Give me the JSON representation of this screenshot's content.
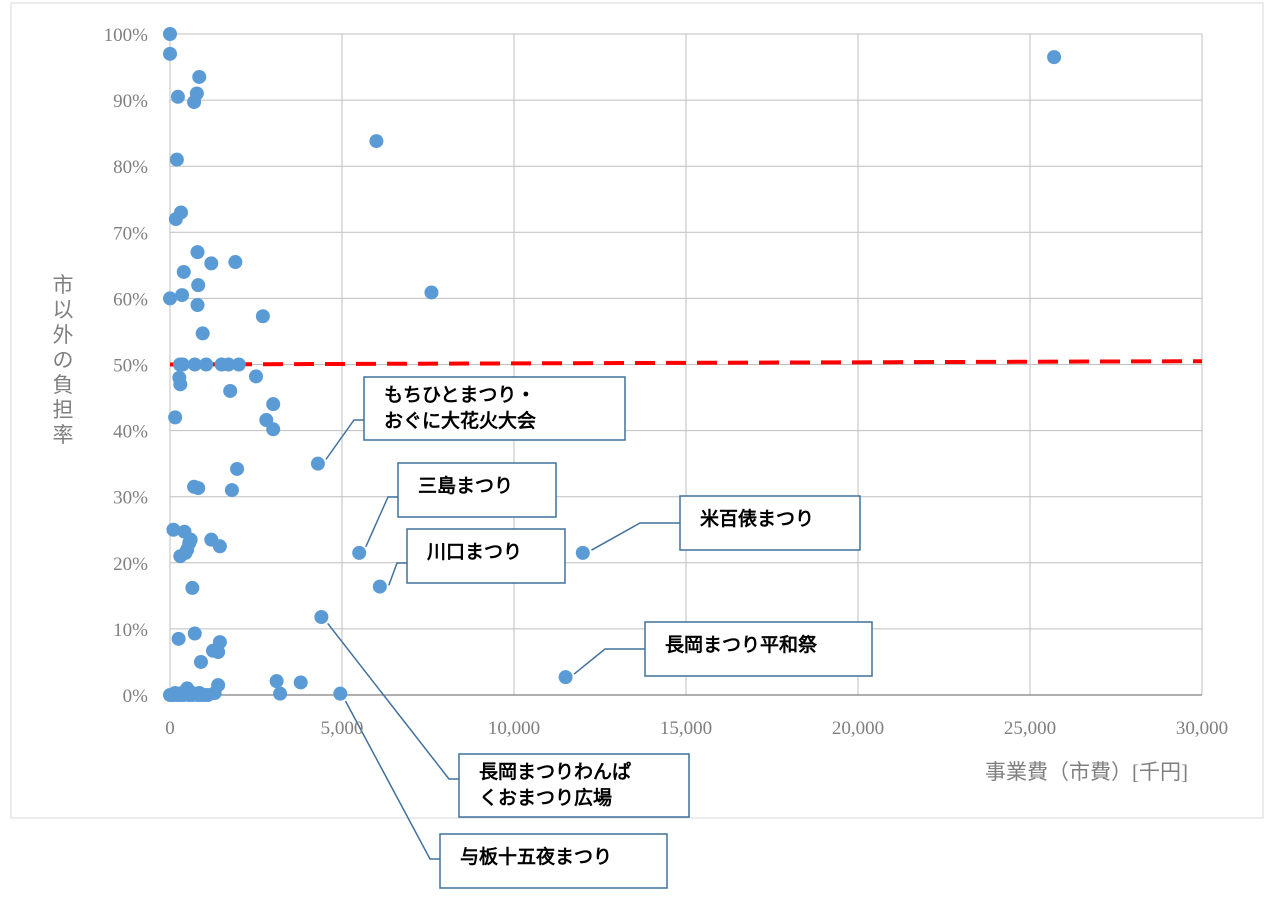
{
  "chart_data": {
    "type": "scatter",
    "title": "",
    "xlabel": "事業費（市費）[千円]",
    "ylabel": "市以外の負担率",
    "xlim": [
      0,
      30000
    ],
    "ylim": [
      0,
      1
    ],
    "x_ticks": [
      0,
      5000,
      10000,
      15000,
      20000,
      25000,
      30000
    ],
    "x_tick_labels": [
      "0",
      "5,000",
      "10,000",
      "15,000",
      "20,000",
      "25,000",
      "30,000"
    ],
    "y_ticks": [
      0,
      0.1,
      0.2,
      0.3,
      0.4,
      0.5,
      0.6,
      0.7,
      0.8,
      0.9,
      1.0
    ],
    "y_tick_labels": [
      "0%",
      "10%",
      "20%",
      "30%",
      "40%",
      "50%",
      "60%",
      "70%",
      "80%",
      "90%",
      "100%"
    ],
    "grid": true,
    "marker_color": "#5b9bd5",
    "reference_line": {
      "y_start": 0.5,
      "y_end": 0.505,
      "color": "#ff0000",
      "style": "dashed"
    },
    "points": [
      [
        0,
        1.0
      ],
      [
        0,
        0.97
      ],
      [
        0,
        0.6
      ],
      [
        0,
        0.0
      ],
      [
        100,
        0.25
      ],
      [
        150,
        0.42
      ],
      [
        170,
        0.72
      ],
      [
        200,
        0.81
      ],
      [
        230,
        0.905
      ],
      [
        250,
        0.085
      ],
      [
        270,
        0.48
      ],
      [
        290,
        0.5
      ],
      [
        300,
        0.47
      ],
      [
        300,
        0.21
      ],
      [
        320,
        0.73
      ],
      [
        350,
        0.605
      ],
      [
        370,
        0.5
      ],
      [
        400,
        0.64
      ],
      [
        420,
        0.247
      ],
      [
        450,
        0.215
      ],
      [
        500,
        0.22
      ],
      [
        500,
        0.01
      ],
      [
        560,
        0.23
      ],
      [
        600,
        0.235
      ],
      [
        650,
        0.162
      ],
      [
        700,
        0.897
      ],
      [
        700,
        0.315
      ],
      [
        720,
        0.093
      ],
      [
        720,
        0.5
      ],
      [
        780,
        0.91
      ],
      [
        800,
        0.67
      ],
      [
        800,
        0.59
      ],
      [
        820,
        0.62
      ],
      [
        820,
        0.313
      ],
      [
        850,
        0.935
      ],
      [
        900,
        0.05
      ],
      [
        950,
        0.547
      ],
      [
        1000,
        0.0
      ],
      [
        1050,
        0.5
      ],
      [
        1200,
        0.653
      ],
      [
        1200,
        0.235
      ],
      [
        1250,
        0.067
      ],
      [
        1300,
        0.003
      ],
      [
        1400,
        0.065
      ],
      [
        1400,
        0.015
      ],
      [
        1450,
        0.225
      ],
      [
        1450,
        0.08
      ],
      [
        1500,
        0.5
      ],
      [
        1700,
        0.5
      ],
      [
        1750,
        0.46
      ],
      [
        1800,
        0.31
      ],
      [
        1900,
        0.655
      ],
      [
        1950,
        0.342
      ],
      [
        2000,
        0.5
      ],
      [
        2500,
        0.482
      ],
      [
        2700,
        0.573
      ],
      [
        2800,
        0.416
      ],
      [
        3000,
        0.44
      ],
      [
        3000,
        0.402
      ],
      [
        3100,
        0.021
      ],
      [
        3200,
        0.002
      ],
      [
        3800,
        0.019
      ],
      [
        4300,
        0.35
      ],
      [
        4400,
        0.118
      ],
      [
        4950,
        0.002
      ],
      [
        5500,
        0.215
      ],
      [
        6000,
        0.838
      ],
      [
        6100,
        0.164
      ],
      [
        7600,
        0.609
      ],
      [
        11500,
        0.027
      ],
      [
        12000,
        0.215
      ],
      [
        25700,
        0.965
      ],
      [
        80,
        0.0
      ],
      [
        150,
        0.003
      ],
      [
        200,
        0.0
      ],
      [
        300,
        0.0
      ],
      [
        350,
        0.003
      ],
      [
        400,
        0.0
      ],
      [
        450,
        0.002
      ],
      [
        550,
        0.0
      ],
      [
        600,
        0.004
      ],
      [
        650,
        0.0
      ],
      [
        700,
        0.002
      ],
      [
        800,
        0.0
      ],
      [
        850,
        0.003
      ],
      [
        900,
        0.0
      ],
      [
        1100,
        0.0
      ]
    ],
    "annotations": [
      {
        "lines": [
          "もちひとまつり・",
          "おぐに大花火大会"
        ],
        "x": 4300,
        "y": 0.35
      },
      {
        "lines": [
          "三島まつり"
        ],
        "x": 5500,
        "y": 0.215
      },
      {
        "lines": [
          "川口まつり"
        ],
        "x": 6100,
        "y": 0.164
      },
      {
        "lines": [
          "米百俵まつり"
        ],
        "x": 12000,
        "y": 0.215
      },
      {
        "lines": [
          "長岡まつり平和祭"
        ],
        "x": 11500,
        "y": 0.027
      },
      {
        "lines": [
          "長岡まつりわんぱ",
          "くおまつり広場"
        ],
        "x": 4400,
        "y": 0.118
      },
      {
        "lines": [
          "与板十五夜まつり"
        ],
        "x": 4950,
        "y": 0.002
      }
    ]
  }
}
